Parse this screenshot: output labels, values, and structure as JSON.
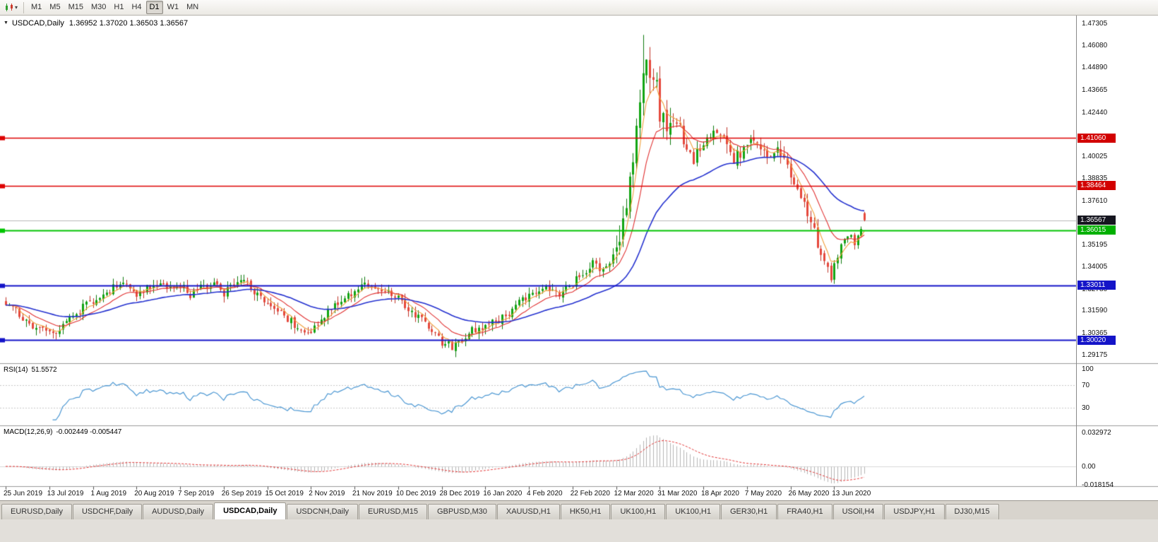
{
  "toolbar": {
    "timeframes": [
      "M1",
      "M5",
      "M15",
      "M30",
      "H1",
      "H4",
      "D1",
      "W1",
      "MN"
    ],
    "active_timeframe": "D1"
  },
  "icons": {
    "collapse_triangle": "▼",
    "dropdown_caret": "▾"
  },
  "chart": {
    "title": "USDCAD,Daily",
    "ohlc_text": "1.36952 1.37020 1.36503 1.36567"
  },
  "rsi": {
    "label": "RSI(14)",
    "value": "51.5572",
    "scale": [
      {
        "label": "100",
        "value": 100
      },
      {
        "label": "70",
        "value": 70
      },
      {
        "label": "30",
        "value": 30
      }
    ]
  },
  "macd": {
    "label": "MACD(12,26,9)",
    "values": "-0.002449 -0.005447",
    "scale": [
      {
        "label": "0.032972",
        "value": 0.032972
      },
      {
        "label": "0.00",
        "value": 0
      },
      {
        "label": "-0.018154",
        "value": -0.018154
      }
    ]
  },
  "price_scale": {
    "ticks": [
      {
        "label": "1.47305",
        "value": 1.47305
      },
      {
        "label": "1.46080",
        "value": 1.4608
      },
      {
        "label": "1.44890",
        "value": 1.4489
      },
      {
        "label": "1.43665",
        "value": 1.43665
      },
      {
        "label": "1.42440",
        "value": 1.4244
      },
      {
        "label": "1.40025",
        "value": 1.40025
      },
      {
        "label": "1.38835",
        "value": 1.38835
      },
      {
        "label": "1.37610",
        "value": 1.3761
      },
      {
        "label": "1.35195",
        "value": 1.35195
      },
      {
        "label": "1.34005",
        "value": 1.34005
      },
      {
        "label": "1.32780",
        "value": 1.3278
      },
      {
        "label": "1.31590",
        "value": 1.3159
      },
      {
        "label": "1.30365",
        "value": 1.30365
      },
      {
        "label": "1.29175",
        "value": 1.29175
      }
    ],
    "tags": [
      {
        "label": "1.41060",
        "value": 1.4106,
        "bg": "#d20000"
      },
      {
        "label": "1.38464",
        "value": 1.38464,
        "bg": "#d20000"
      },
      {
        "label": "1.36567",
        "value": 1.36567,
        "bg": "#15151f"
      },
      {
        "label": "1.36015",
        "value": 1.36015,
        "bg": "#00b000"
      },
      {
        "label": "1.33011",
        "value": 1.33011,
        "bg": "#1414c8"
      },
      {
        "label": "1.30020",
        "value": 1.3002,
        "bg": "#1414c8"
      }
    ]
  },
  "date_axis": [
    {
      "label": "25 Jun 2019",
      "day": 0
    },
    {
      "label": "13 Jul 2019",
      "day": 13
    },
    {
      "label": "1 Aug 2019",
      "day": 26
    },
    {
      "label": "20 Aug 2019",
      "day": 39
    },
    {
      "label": "7 Sep 2019",
      "day": 52
    },
    {
      "label": "26 Sep 2019",
      "day": 65
    },
    {
      "label": "15 Oct 2019",
      "day": 78
    },
    {
      "label": "2 Nov 2019",
      "day": 91
    },
    {
      "label": "21 Nov 2019",
      "day": 104
    },
    {
      "label": "10 Dec 2019",
      "day": 117
    },
    {
      "label": "28 Dec 2019",
      "day": 130
    },
    {
      "label": "16 Jan 2020",
      "day": 143
    },
    {
      "label": "4 Feb 2020",
      "day": 156
    },
    {
      "label": "22 Feb 2020",
      "day": 169
    },
    {
      "label": "12 Mar 2020",
      "day": 182
    },
    {
      "label": "31 Mar 2020",
      "day": 195
    },
    {
      "label": "18 Apr 2020",
      "day": 208
    },
    {
      "label": "7 May 2020",
      "day": 221
    },
    {
      "label": "26 May 2020",
      "day": 234
    },
    {
      "label": "13 Jun 2020",
      "day": 247
    }
  ],
  "tabs": {
    "items": [
      "EURUSD,Daily",
      "USDCHF,Daily",
      "AUDUSD,Daily",
      "USDCAD,Daily",
      "USDCNH,Daily",
      "EURUSD,M15",
      "GBPUSD,M30",
      "XAUUSD,H1",
      "HK50,H1",
      "UK100,H1",
      "UK100,H1",
      "GER30,H1",
      "FRA40,H1",
      "USOil,H4",
      "USDJPY,H1",
      "DJ30,M15"
    ],
    "active_index": 3
  },
  "chart_data": {
    "type": "candlestick",
    "symbol": "USDCAD",
    "period": "Daily",
    "days": 257,
    "last_ohlc": {
      "open": 1.36952,
      "high": 1.3702,
      "low": 1.36503,
      "close": 1.36567
    },
    "price_anchors": [
      [
        0,
        1.3215
      ],
      [
        4,
        1.314
      ],
      [
        9,
        1.307
      ],
      [
        14,
        1.304
      ],
      [
        19,
        1.312
      ],
      [
        23,
        1.318
      ],
      [
        26,
        1.3215
      ],
      [
        30,
        1.3265
      ],
      [
        34,
        1.3305
      ],
      [
        37,
        1.328
      ],
      [
        39,
        1.325
      ],
      [
        42,
        1.3285
      ],
      [
        45,
        1.331
      ],
      [
        48,
        1.327
      ],
      [
        52,
        1.3305
      ],
      [
        55,
        1.3245
      ],
      [
        58,
        1.3285
      ],
      [
        62,
        1.33
      ],
      [
        65,
        1.3255
      ],
      [
        68,
        1.3305
      ],
      [
        71,
        1.333
      ],
      [
        74,
        1.3265
      ],
      [
        78,
        1.32
      ],
      [
        82,
        1.3145
      ],
      [
        86,
        1.3085
      ],
      [
        90,
        1.305
      ],
      [
        93,
        1.3085
      ],
      [
        96,
        1.315
      ],
      [
        100,
        1.322
      ],
      [
        104,
        1.3275
      ],
      [
        107,
        1.33
      ],
      [
        110,
        1.3285
      ],
      [
        113,
        1.3265
      ],
      [
        117,
        1.323
      ],
      [
        120,
        1.317
      ],
      [
        124,
        1.311
      ],
      [
        127,
        1.305
      ],
      [
        130,
        1.299
      ],
      [
        133,
        1.2965
      ],
      [
        136,
        1.3
      ],
      [
        139,
        1.3055
      ],
      [
        143,
        1.3085
      ],
      [
        147,
        1.311
      ],
      [
        151,
        1.3165
      ],
      [
        155,
        1.3235
      ],
      [
        159,
        1.3285
      ],
      [
        162,
        1.327
      ],
      [
        165,
        1.3245
      ],
      [
        169,
        1.331
      ],
      [
        172,
        1.337
      ],
      [
        175,
        1.3425
      ],
      [
        177,
        1.339
      ],
      [
        179,
        1.341
      ],
      [
        181,
        1.3465
      ],
      [
        183,
        1.358
      ],
      [
        185,
        1.3755
      ],
      [
        187,
        1.3985
      ],
      [
        189,
        1.432
      ],
      [
        190,
        1.451
      ],
      [
        192,
        1.448
      ],
      [
        194,
        1.437
      ],
      [
        195,
        1.4235
      ],
      [
        197,
        1.4135
      ],
      [
        199,
        1.4255
      ],
      [
        201,
        1.415
      ],
      [
        203,
        1.4045
      ],
      [
        205,
        1.3995
      ],
      [
        207,
        1.406
      ],
      [
        209,
        1.4105
      ],
      [
        211,
        1.416
      ],
      [
        213,
        1.4125
      ],
      [
        215,
        1.4075
      ],
      [
        217,
        1.399
      ],
      [
        219,
        1.402
      ],
      [
        221,
        1.4065
      ],
      [
        223,
        1.411
      ],
      [
        225,
        1.406
      ],
      [
        227,
        1.3985
      ],
      [
        229,
        1.401
      ],
      [
        231,
        1.404
      ],
      [
        233,
        1.396
      ],
      [
        235,
        1.386
      ],
      [
        237,
        1.3775
      ],
      [
        239,
        1.37
      ],
      [
        241,
        1.359
      ],
      [
        243,
        1.348
      ],
      [
        245,
        1.3395
      ],
      [
        246,
        1.335
      ],
      [
        247,
        1.342
      ],
      [
        248,
        1.3455
      ],
      [
        249,
        1.351
      ],
      [
        250,
        1.355
      ],
      [
        251,
        1.3575
      ],
      [
        252,
        1.359
      ],
      [
        253,
        1.354
      ],
      [
        254,
        1.3565
      ],
      [
        255,
        1.362
      ],
      [
        256,
        1.36567
      ]
    ],
    "volatile_ranges": [
      [
        182,
        199,
        2.6
      ],
      [
        200,
        233,
        1.5
      ],
      [
        234,
        246,
        1.3
      ]
    ],
    "forced_extremes": {
      "spike_high_day": 190,
      "spike_high": 1.467,
      "min_low_day": 133,
      "min_low": 1.2952,
      "june_low_day": 246,
      "june_low": 1.3316
    },
    "moving_averages": [
      {
        "type": "ema",
        "period": 5,
        "color": "#f0a03c"
      },
      {
        "type": "ema",
        "period": 13,
        "color": "#e03030"
      },
      {
        "type": "ema",
        "period": 40,
        "color": "#2431cf"
      }
    ],
    "rsi_period": 14,
    "rsi_levels": [
      70,
      30
    ],
    "macd_params": [
      12,
      26,
      9
    ],
    "horizontal_lines": [
      {
        "value": 1.4106,
        "color": "#dd0000",
        "width": 1.4
      },
      {
        "value": 1.38464,
        "color": "#dd0000",
        "width": 1.4
      },
      {
        "value": 1.36015,
        "color": "#00c400",
        "width": 2
      },
      {
        "value": 1.33011,
        "color": "#1414c8",
        "width": 2
      },
      {
        "value": 1.3002,
        "color": "#1414c8",
        "width": 2
      }
    ],
    "bid_line": {
      "value": 1.36567,
      "color": "#b8b8b8"
    },
    "main_range": [
      1.289,
      1.4745
    ],
    "colors": {
      "up_body": "#12a512",
      "up_wick": "#0c7a0c",
      "down_body": "#e6483c",
      "down_wick": "#bf3227",
      "rsi_line": "#4a96d2",
      "macd_hist": "#b4b4b4",
      "macd_signal": "#e03030",
      "separator": "#9a9a9a",
      "level_dash": "#c8c8c8"
    }
  }
}
